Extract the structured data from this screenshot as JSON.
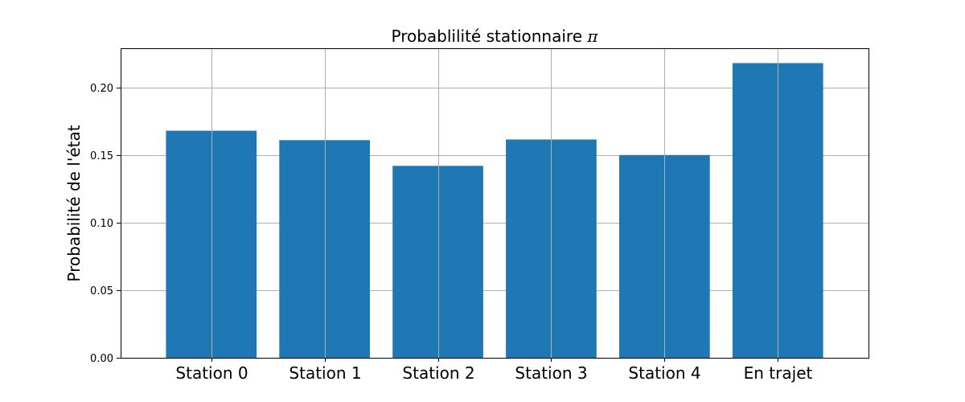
{
  "chart_data": {
    "type": "bar",
    "title": "Probablilité stationnaire",
    "title_symbol": "π",
    "xlabel": "",
    "ylabel": "Probabilité de l'état",
    "categories": [
      "Station 0",
      "Station 1",
      "Station 2",
      "Station 3",
      "Station 4",
      "En trajet"
    ],
    "values": [
      0.168,
      0.161,
      0.142,
      0.1615,
      0.15,
      0.218
    ],
    "ylim": [
      0,
      0.229
    ],
    "yticks": [
      "0.00",
      "0.05",
      "0.10",
      "0.15",
      "0.20"
    ],
    "grid": true,
    "bar_color": "#1f77b4"
  }
}
